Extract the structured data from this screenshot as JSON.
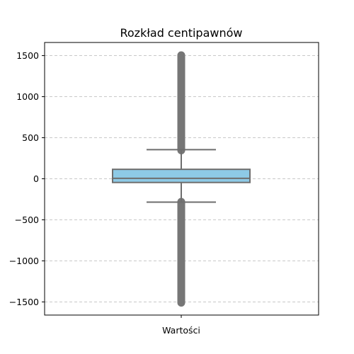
{
  "chart_data": {
    "type": "box",
    "title": "Rozkład centipawnów",
    "categories": [
      "Wartości"
    ],
    "ylim": [
      -1660,
      1660
    ],
    "yticks": [
      1500,
      1000,
      500,
      0,
      -500,
      -1000,
      -1500
    ],
    "ytick_labels": [
      "1500",
      "1000",
      "500",
      "0",
      "−500",
      "−1000",
      "−1500"
    ],
    "grid": "y-dashed",
    "box": {
      "q1": -45,
      "median": 5,
      "q3": 115,
      "whisker_low": -285,
      "whisker_high": 355,
      "outliers_low_range": [
        -1510,
        -280
      ],
      "outliers_high_range": [
        345,
        1505
      ]
    },
    "colors": {
      "box_fill": "#8ecae6",
      "box_edge": "#6e6e6e",
      "outlier": "#767676",
      "grid": "#c8c8c8"
    }
  }
}
